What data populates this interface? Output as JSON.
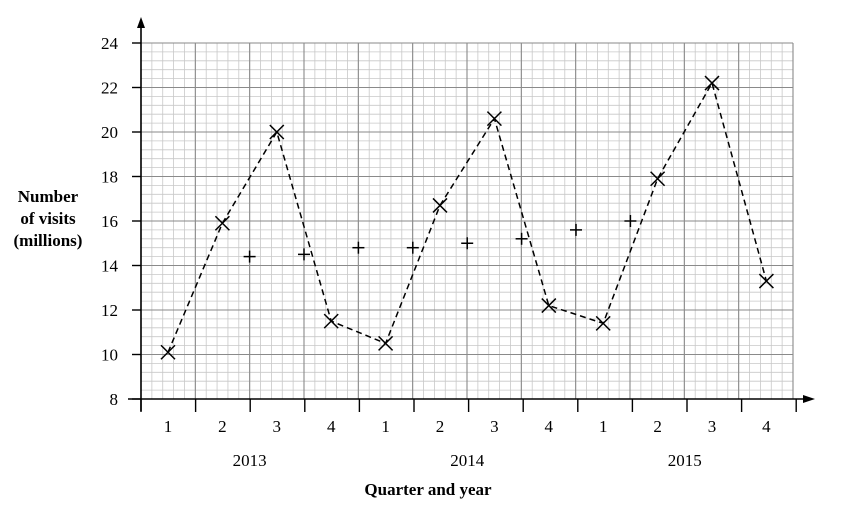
{
  "chart_data": {
    "type": "line",
    "title": "",
    "ylabel_lines": [
      "Number",
      "of visits",
      "(millions)"
    ],
    "xlabel": "Quarter and year",
    "ylim": [
      8,
      24
    ],
    "y_ticks": [
      8,
      10,
      12,
      14,
      16,
      18,
      20,
      22,
      24
    ],
    "grid": true,
    "quarter_labels": [
      "1",
      "2",
      "3",
      "4",
      "1",
      "2",
      "3",
      "4",
      "1",
      "2",
      "3",
      "4"
    ],
    "year_labels": [
      "2013",
      "2014",
      "2015"
    ],
    "series": [
      {
        "marker": "x",
        "line_style": "dashed",
        "x": [
          1,
          2,
          3,
          4,
          5,
          6,
          7,
          8,
          9,
          10,
          11,
          12
        ],
        "values": [
          10.1,
          15.9,
          20.0,
          11.5,
          10.5,
          16.7,
          20.6,
          12.2,
          11.4,
          17.9,
          22.2,
          13.3
        ]
      },
      {
        "marker": "+",
        "line_style": "none",
        "x": [
          2.5,
          3.5,
          4.5,
          5.5,
          6.5,
          7.5,
          8.5,
          9.5
        ],
        "values": [
          14.4,
          14.5,
          14.8,
          14.8,
          15.0,
          15.2,
          15.6,
          16.0
        ]
      }
    ]
  }
}
